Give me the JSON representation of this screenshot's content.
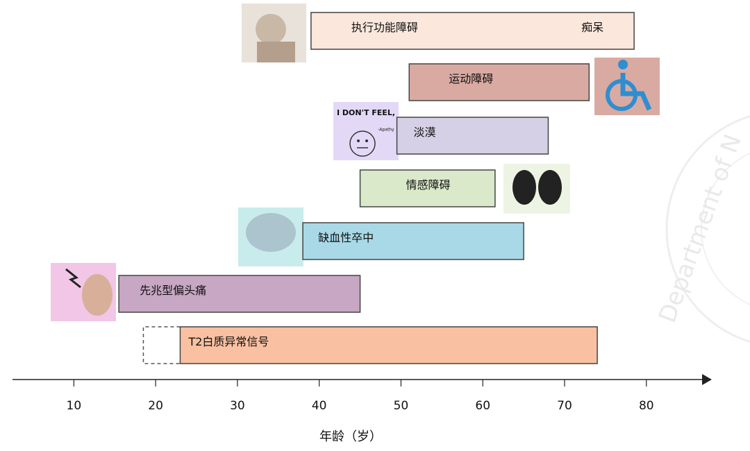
{
  "chart_data": {
    "type": "range-bar",
    "x_label": "年龄（岁）",
    "categories": [
      "执行功能障碍",
      "运动障碍",
      "淡漠",
      "情感障碍",
      "缺血性卒中",
      "先兆型偏头痛",
      "T2白质异常信号"
    ],
    "start": [
      39,
      51,
      49.5,
      45,
      38,
      15.5,
      23
    ],
    "end": [
      78.5,
      73,
      68,
      61.5,
      65,
      45,
      74
    ],
    "dashed_start": [
      null,
      null,
      null,
      null,
      null,
      null,
      18.5
    ],
    "end_labels": [
      "痴呆",
      null,
      null,
      null,
      null,
      null,
      null
    ],
    "colors": [
      "#fbe7dc",
      "#d9aaa2",
      "#d6d0e6",
      "#d9e9c9",
      "#a9d9e7",
      "#c7a7c3",
      "#f9c0a2"
    ],
    "xlim": [
      2.5,
      88
    ],
    "xticks": [
      10,
      20,
      30,
      40,
      50,
      60,
      70,
      80
    ],
    "image_text": [
      "I DON'T FEEL,",
      "-Apathy"
    ],
    "watermark": "Department of N"
  }
}
